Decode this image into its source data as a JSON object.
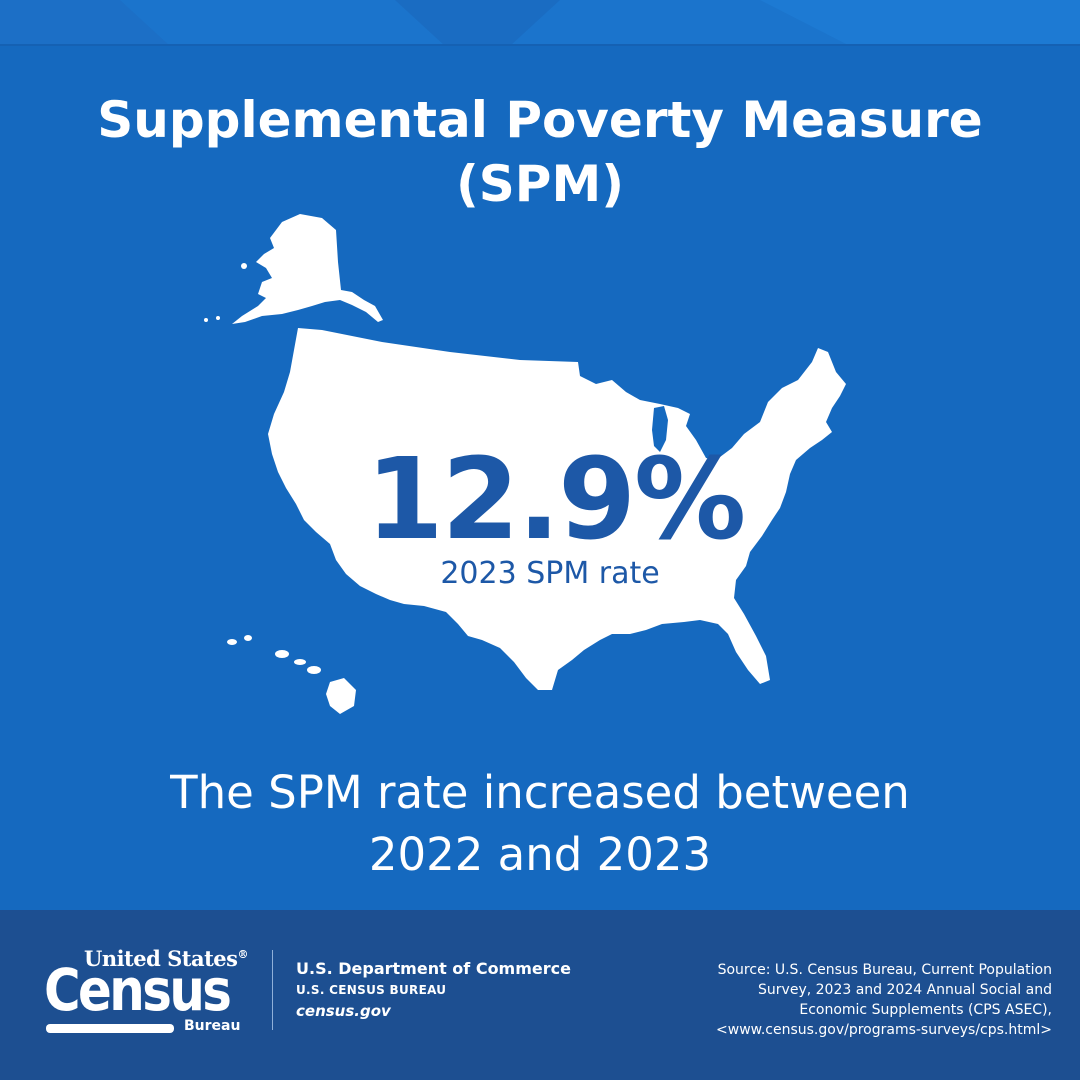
{
  "title": {
    "line1": "Supplemental Poverty Measure",
    "line2": "(SPM)"
  },
  "stat": {
    "value": "12.9%",
    "label": "2023 SPM rate"
  },
  "statement": {
    "line1": "The SPM rate increased between",
    "line2": "2022 and 2023"
  },
  "footer": {
    "logo": {
      "united_states": "United States",
      "registered_mark": "®",
      "census": "Census",
      "bureau": "Bureau"
    },
    "department": "U.S. Department of Commerce",
    "bureau": "U.S. CENSUS BUREAU",
    "url": "census.gov",
    "source_lines": [
      "Source: U.S. Census Bureau, Current Population",
      "Survey, 2023 and 2024 Annual Social and",
      "Economic Supplements (CPS ASEC),",
      "<www.census.gov/programs-surveys/cps.html>"
    ]
  },
  "colors": {
    "background": "#1569bf",
    "footer": "#1d4f91",
    "stat_text": "#1d58a7",
    "map_fill": "#ffffff"
  }
}
